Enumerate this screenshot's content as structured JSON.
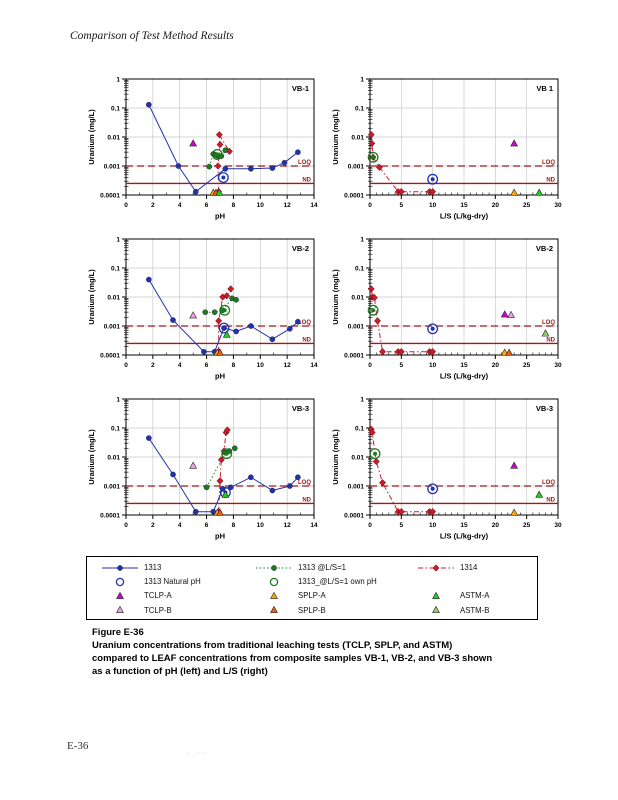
{
  "page": {
    "header": "Comparison of Test Method Results",
    "footer_page_number": "E-36",
    "footer_faint_mark": "· ··"
  },
  "caption": {
    "title": "Figure E-36",
    "lines": [
      "Uranium concentrations from traditional leaching tests (TCLP, SPLP, and ASTM)",
      "compared to LEAF concentrations from composite samples VB-1, VB-2, and VB-3 shown",
      "as a function of pH (left) and L/S (right)"
    ]
  },
  "colors": {
    "ref_line": "#A01818",
    "grid": "#C9C9C9",
    "blue": "#2233AA",
    "green": "#1D7A1D",
    "red": "#CB1A2C"
  },
  "series_styles": {
    "s1313": {
      "marker": "circle",
      "fill": "#2233AA",
      "line": "solid",
      "lineColor": "#2233AA"
    },
    "s1313_ls1": {
      "marker": "circle",
      "fill": "#1D7A1D",
      "line": "dotted",
      "lineColor": "#1D7A1D"
    },
    "s1314": {
      "marker": "diamond",
      "fill": "#CB1A2C",
      "line": "dashdot",
      "lineColor": "#CB1A2C"
    },
    "s1313_natural": {
      "marker": "circled",
      "fill": "#2233AA"
    },
    "s1313_ls1_own": {
      "marker": "circled",
      "fill": "#1D7A1D"
    },
    "tclp_a": {
      "marker": "triangle",
      "fill": "#D400D4"
    },
    "tclp_b": {
      "marker": "triangle",
      "fill": "#F2A0E6"
    },
    "splp_a": {
      "marker": "triangle",
      "fill": "#FFAA00"
    },
    "splp_b": {
      "marker": "triangle",
      "fill": "#E86010"
    },
    "astm_a": {
      "marker": "triangle",
      "fill": "#22CC22"
    },
    "astm_b": {
      "marker": "triangle",
      "fill": "#99CC66"
    }
  },
  "legend": {
    "items": [
      {
        "key": "1313",
        "label": "1313",
        "style": "s1313",
        "row": 0,
        "col": 0
      },
      {
        "key": "1313-ls1",
        "label": "1313 @L/S=1",
        "style": "s1313_ls1",
        "row": 0,
        "col": 1
      },
      {
        "key": "1314",
        "label": "1314",
        "style": "s1314",
        "row": 0,
        "col": 2
      },
      {
        "key": "1313-natural",
        "label": "1313 Natural pH",
        "style": "s1313_natural",
        "row": 1,
        "col": 0
      },
      {
        "key": "1313-ls1-own",
        "label": "1313_@L/S=1 own pH",
        "style": "s1313_ls1_own",
        "row": 1,
        "col": 1
      },
      {
        "key": "tclp-a",
        "label": "TCLP-A",
        "style": "tclp_a",
        "row": 2,
        "col": 0
      },
      {
        "key": "splp-a",
        "label": "SPLP-A",
        "style": "splp_a",
        "row": 2,
        "col": 1
      },
      {
        "key": "astm-a",
        "label": "ASTM-A",
        "style": "astm_a",
        "row": 2,
        "col": 2
      },
      {
        "key": "tclp-b",
        "label": "TCLP-B",
        "style": "tclp_b",
        "row": 3,
        "col": 0
      },
      {
        "key": "splp-b",
        "label": "SPLP-B",
        "style": "splp_b",
        "row": 3,
        "col": 1
      },
      {
        "key": "astm-b",
        "label": "ASTM-B",
        "style": "astm_b",
        "row": 3,
        "col": 2
      }
    ]
  },
  "chart_data": [
    {
      "type": "scatter",
      "name": "vb1-ph",
      "title": "VB-1",
      "xlabel": "pH",
      "ylabel": "Uranium (mg/L)",
      "xlim": [
        0,
        14
      ],
      "xstep": 2,
      "ylim": [
        0.0001,
        1
      ],
      "yscale": "log",
      "ytick_labels": [
        "1",
        "0.1",
        "0.01",
        "0.001",
        "0.0001"
      ],
      "ref_lines": [
        {
          "y": 0.001,
          "label": "LOQ",
          "style": "dashed"
        },
        {
          "y": 0.00025,
          "label": "ND",
          "style": "solid"
        }
      ],
      "series": [
        {
          "style": "s1314",
          "points": [
            [
              6.9,
              0.00013
            ],
            [
              6.85,
              0.001
            ],
            [
              7.0,
              0.0055
            ],
            [
              6.95,
              0.012
            ],
            [
              7.7,
              0.0032
            ]
          ]
        },
        {
          "style": "s1313_ls1",
          "points": [
            [
              6.2,
              0.00095
            ],
            [
              6.5,
              0.0026
            ],
            [
              6.7,
              0.0024
            ],
            [
              6.9,
              0.0021
            ],
            [
              7.1,
              0.0022
            ],
            [
              7.4,
              0.0035
            ]
          ]
        },
        {
          "style": "s1313",
          "points": [
            [
              1.7,
              0.13
            ],
            [
              3.9,
              0.001
            ],
            [
              5.2,
              0.00013
            ],
            [
              7.4,
              0.0008
            ],
            [
              9.3,
              0.0008
            ],
            [
              10.9,
              0.00085
            ],
            [
              11.8,
              0.0013
            ],
            [
              12.8,
              0.003
            ]
          ]
        },
        {
          "style": "s1313_ls1_own",
          "points": [
            [
              6.8,
              0.0025
            ]
          ]
        },
        {
          "style": "s1313_natural",
          "points": [
            [
              7.25,
              0.0004
            ]
          ]
        },
        {
          "style": "tclp_a",
          "points": [
            [
              5.0,
              0.006
            ]
          ]
        },
        {
          "style": "splp_a",
          "points": [
            [
              6.5,
              0.00012
            ]
          ]
        },
        {
          "style": "splp_b",
          "points": [
            [
              6.7,
              0.00012
            ]
          ]
        },
        {
          "style": "astm_a",
          "points": [
            [
              6.95,
              0.00012
            ]
          ]
        }
      ]
    },
    {
      "type": "scatter",
      "name": "vb1-ls",
      "title": "VB 1",
      "xlabel": "L/S (L/kg-dry)",
      "ylabel": "Uranium (mg/L)",
      "xlim": [
        0,
        30
      ],
      "xstep": 5,
      "ylim": [
        0.0001,
        1
      ],
      "yscale": "log",
      "ytick_labels": [
        "1",
        "0.1",
        "0.01",
        "0.001",
        "0.0001"
      ],
      "ref_lines": [
        {
          "y": 0.001,
          "label": "LOQ",
          "style": "dashed"
        },
        {
          "y": 0.00025,
          "label": "ND",
          "style": "solid"
        }
      ],
      "series": [
        {
          "style": "s1314",
          "points": [
            [
              0.2,
              0.012
            ],
            [
              0.3,
              0.006
            ],
            [
              0.5,
              0.002
            ],
            [
              1.5,
              0.0009
            ],
            [
              4.5,
              0.00013
            ],
            [
              5,
              0.00013
            ],
            [
              9.5,
              0.00013
            ],
            [
              10,
              0.00013
            ]
          ]
        },
        {
          "style": "s1313_ls1_own",
          "points": [
            [
              0.5,
              0.002
            ]
          ]
        },
        {
          "style": "s1313_natural",
          "points": [
            [
              10,
              0.00035
            ]
          ]
        },
        {
          "style": "tclp_a",
          "points": [
            [
              23,
              0.006
            ]
          ]
        },
        {
          "style": "splp_a",
          "points": [
            [
              23,
              0.00012
            ]
          ]
        },
        {
          "style": "astm_a",
          "points": [
            [
              27,
              0.00012
            ]
          ]
        }
      ]
    },
    {
      "type": "scatter",
      "name": "vb2-ph",
      "title": "VB-2",
      "xlabel": "pH",
      "ylabel": "Uranium (mg/L)",
      "xlim": [
        0,
        14
      ],
      "xstep": 2,
      "ylim": [
        0.0001,
        1
      ],
      "yscale": "log",
      "ytick_labels": [
        "1",
        "0.1",
        "0.01",
        "0.001",
        "0.0001"
      ],
      "ref_lines": [
        {
          "y": 0.001,
          "label": "LOQ",
          "style": "dashed"
        },
        {
          "y": 0.00025,
          "label": "ND",
          "style": "solid"
        }
      ],
      "series": [
        {
          "style": "s1314",
          "points": [
            [
              6.9,
              0.00013
            ],
            [
              6.9,
              0.0015
            ],
            [
              7.2,
              0.01
            ],
            [
              7.5,
              0.011
            ],
            [
              7.8,
              0.019
            ]
          ]
        },
        {
          "style": "s1313_ls1",
          "points": [
            [
              5.9,
              0.003
            ],
            [
              6.6,
              0.003
            ],
            [
              7.2,
              0.0035
            ],
            [
              7.9,
              0.009
            ],
            [
              8.2,
              0.008
            ]
          ]
        },
        {
          "style": "s1313",
          "points": [
            [
              1.7,
              0.04
            ],
            [
              3.5,
              0.0016
            ],
            [
              5.8,
              0.00013
            ],
            [
              6.6,
              0.00013
            ],
            [
              7.3,
              0.00085
            ],
            [
              8.2,
              0.00065
            ],
            [
              9.3,
              0.001
            ],
            [
              10.9,
              0.00035
            ],
            [
              12.2,
              0.0008
            ],
            [
              12.8,
              0.0014
            ]
          ]
        },
        {
          "style": "s1313_ls1_own",
          "points": [
            [
              7.35,
              0.0035
            ]
          ]
        },
        {
          "style": "s1313_natural",
          "points": [
            [
              7.3,
              0.00085
            ]
          ]
        },
        {
          "style": "tclp_b",
          "points": [
            [
              5.0,
              0.0023
            ]
          ]
        },
        {
          "style": "astm_a",
          "points": [
            [
              7.5,
              0.0005
            ]
          ]
        },
        {
          "style": "splp_a",
          "points": [
            [
              6.8,
              0.00012
            ]
          ]
        },
        {
          "style": "splp_b",
          "points": [
            [
              7.0,
              0.00012
            ]
          ]
        }
      ]
    },
    {
      "type": "scatter",
      "name": "vb2-ls",
      "title": "VB-2",
      "xlabel": "L/S (L/kg-dry)",
      "ylabel": "Uranium (mg/L)",
      "xlim": [
        0,
        30
      ],
      "xstep": 5,
      "ylim": [
        0.0001,
        1
      ],
      "yscale": "log",
      "ytick_labels": [
        "1",
        "0.1",
        "0.01",
        "0.001",
        "0.0001"
      ],
      "ref_lines": [
        {
          "y": 0.001,
          "label": "LOQ",
          "style": "dashed"
        },
        {
          "y": 0.00025,
          "label": "ND",
          "style": "solid"
        }
      ],
      "series": [
        {
          "style": "s1314",
          "points": [
            [
              0.2,
              0.019
            ],
            [
              0.4,
              0.01
            ],
            [
              0.7,
              0.0095
            ],
            [
              1.2,
              0.0015
            ],
            [
              2,
              0.00013
            ],
            [
              4.5,
              0.00013
            ],
            [
              5,
              0.00013
            ],
            [
              9.5,
              0.00013
            ],
            [
              10,
              0.00013
            ]
          ]
        },
        {
          "style": "s1313_ls1_own",
          "points": [
            [
              0.5,
              0.0035
            ]
          ]
        },
        {
          "style": "s1313_natural",
          "points": [
            [
              10,
              0.0008
            ]
          ]
        },
        {
          "style": "tclp_a",
          "points": [
            [
              21.5,
              0.0025
            ]
          ]
        },
        {
          "style": "tclp_b",
          "points": [
            [
              22.5,
              0.0024
            ]
          ]
        },
        {
          "style": "astm_b",
          "points": [
            [
              28,
              0.00055
            ]
          ]
        },
        {
          "style": "splp_a",
          "points": [
            [
              21.5,
              0.00012
            ]
          ]
        },
        {
          "style": "splp_b",
          "points": [
            [
              22.2,
              0.00012
            ]
          ]
        }
      ]
    },
    {
      "type": "scatter",
      "name": "vb3-ph",
      "title": "VB-3",
      "xlabel": "pH",
      "ylabel": "Uranium (mg/L)",
      "xlim": [
        0,
        14
      ],
      "xstep": 2,
      "ylim": [
        0.0001,
        1
      ],
      "yscale": "log",
      "ytick_labels": [
        "1",
        "0.1",
        "0.01",
        "0.001",
        "0.0001"
      ],
      "ref_lines": [
        {
          "y": 0.001,
          "label": "LOQ",
          "style": "dashed"
        },
        {
          "y": 0.00025,
          "label": "ND",
          "style": "solid"
        }
      ],
      "series": [
        {
          "style": "s1314",
          "points": [
            [
              6.9,
              0.00013
            ],
            [
              7.0,
              0.0015
            ],
            [
              7.1,
              0.008
            ],
            [
              7.3,
              0.016
            ],
            [
              7.45,
              0.07
            ],
            [
              7.55,
              0.085
            ]
          ]
        },
        {
          "style": "s1313_ls1",
          "points": [
            [
              6.0,
              0.0009
            ],
            [
              7.4,
              0.014
            ],
            [
              7.7,
              0.016
            ],
            [
              8.1,
              0.02
            ]
          ]
        },
        {
          "style": "s1313",
          "points": [
            [
              1.7,
              0.045
            ],
            [
              3.5,
              0.0025
            ],
            [
              5.2,
              0.00013
            ],
            [
              6.5,
              0.00013
            ],
            [
              7.2,
              0.0008
            ],
            [
              7.8,
              0.0009
            ],
            [
              9.3,
              0.002
            ],
            [
              10.9,
              0.0007
            ],
            [
              12.2,
              0.001
            ],
            [
              12.8,
              0.002
            ]
          ]
        },
        {
          "style": "s1313_ls1_own",
          "points": [
            [
              7.5,
              0.013
            ]
          ]
        },
        {
          "style": "s1313_natural",
          "points": [
            [
              7.4,
              0.0006
            ]
          ]
        },
        {
          "style": "tclp_b",
          "points": [
            [
              5.0,
              0.005
            ]
          ]
        },
        {
          "style": "astm_a",
          "points": [
            [
              7.4,
              0.0005
            ]
          ]
        },
        {
          "style": "splp_a",
          "points": [
            [
              6.8,
              0.00012
            ]
          ]
        },
        {
          "style": "splp_b",
          "points": [
            [
              7.0,
              0.00012
            ]
          ]
        }
      ]
    },
    {
      "type": "scatter",
      "name": "vb3-ls",
      "title": "VB-3",
      "xlabel": "L/S (L/kg-dry)",
      "ylabel": "Uranium (mg/L)",
      "xlim": [
        0,
        30
      ],
      "xstep": 5,
      "ylim": [
        0.0001,
        1
      ],
      "yscale": "log",
      "ytick_labels": [
        "1",
        "0.1",
        "0.01",
        "0.001",
        "0.0001"
      ],
      "ref_lines": [
        {
          "y": 0.001,
          "label": "LOQ",
          "style": "dashed"
        },
        {
          "y": 0.00025,
          "label": "ND",
          "style": "solid"
        }
      ],
      "series": [
        {
          "style": "s1314",
          "points": [
            [
              0.2,
              0.09
            ],
            [
              0.35,
              0.07
            ],
            [
              1,
              0.007
            ],
            [
              2,
              0.0013
            ],
            [
              4.5,
              0.00013
            ],
            [
              5,
              0.00013
            ],
            [
              9.5,
              0.00013
            ],
            [
              10,
              0.00013
            ]
          ]
        },
        {
          "style": "s1313_ls1_own",
          "points": [
            [
              0.8,
              0.013
            ]
          ]
        },
        {
          "style": "s1313_natural",
          "points": [
            [
              10,
              0.0008
            ]
          ]
        },
        {
          "style": "tclp_a",
          "points": [
            [
              23,
              0.005
            ]
          ]
        },
        {
          "style": "astm_a",
          "points": [
            [
              27,
              0.0005
            ]
          ]
        },
        {
          "style": "splp_a",
          "points": [
            [
              23,
              0.00012
            ]
          ]
        }
      ]
    }
  ]
}
